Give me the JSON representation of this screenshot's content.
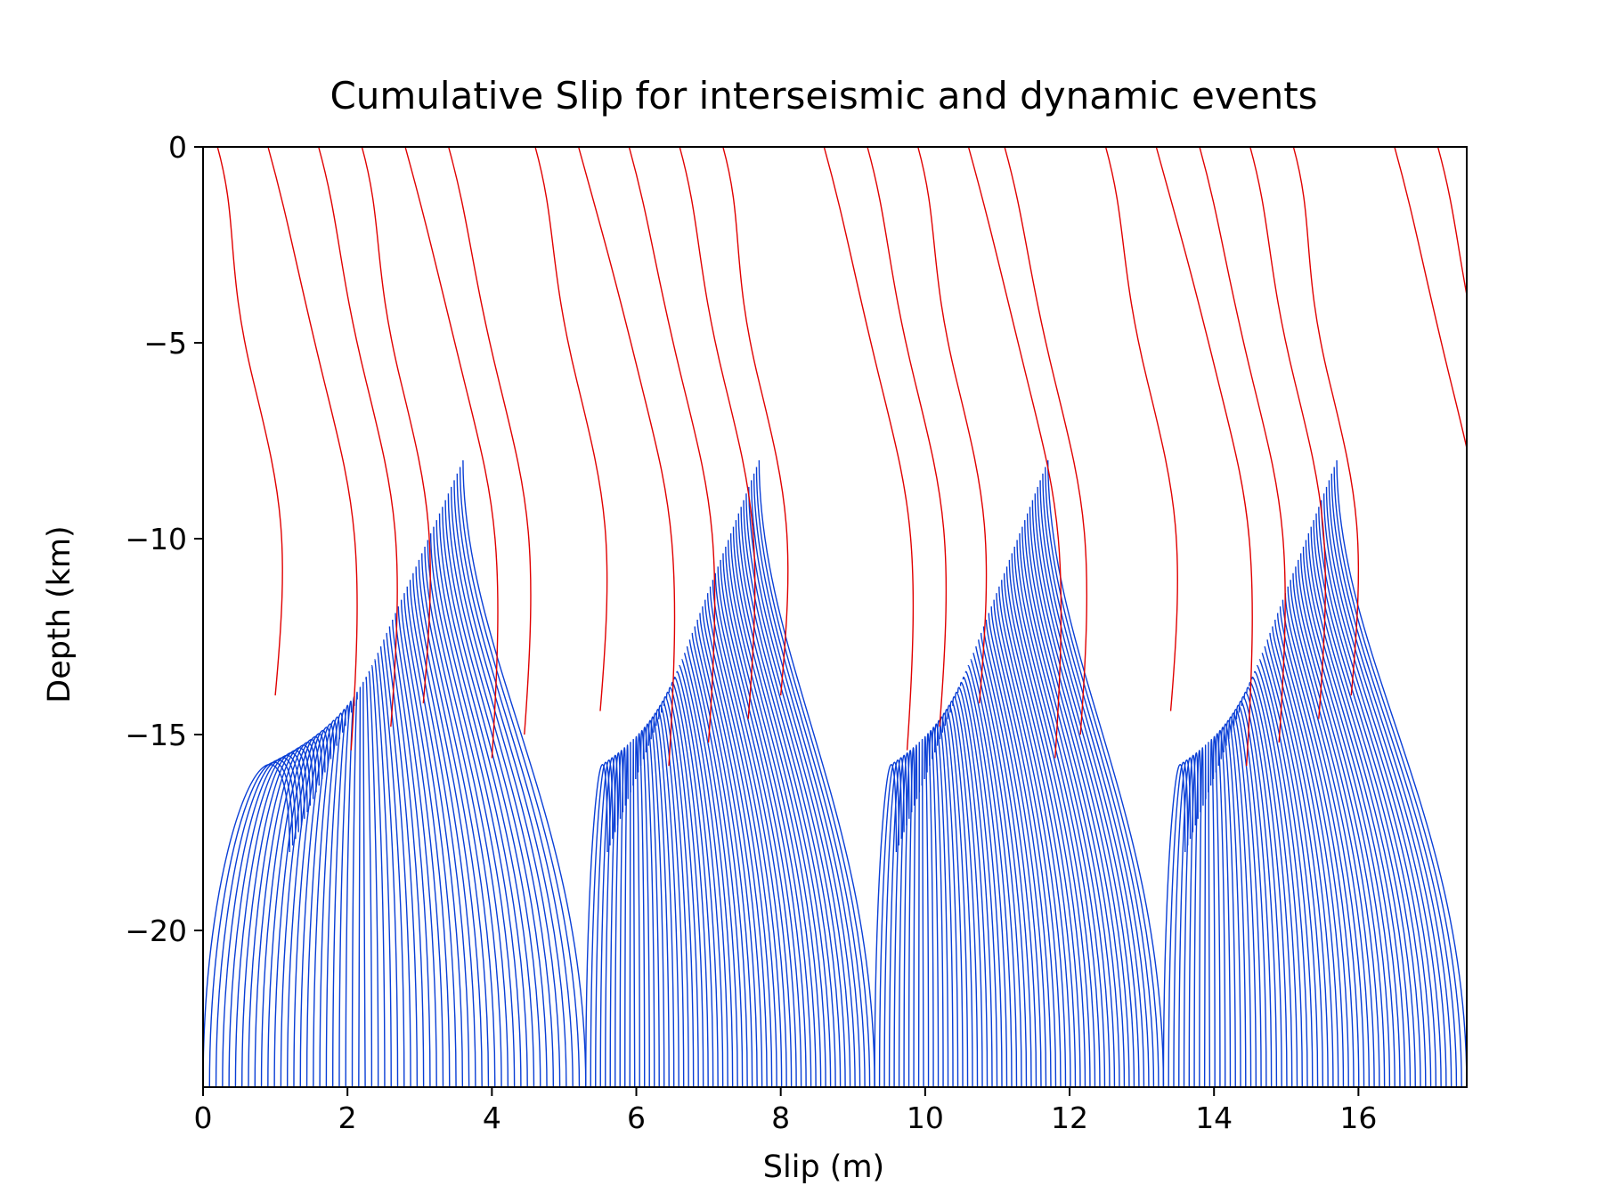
{
  "chart_data": {
    "type": "line",
    "title": "Cumulative Slip for interseismic and dynamic events",
    "xlabel": "Slip (m)",
    "ylabel": "Depth (km)",
    "xlim": [
      0,
      17.5
    ],
    "ylim": [
      -24,
      0
    ],
    "xticks": [
      0,
      2,
      4,
      6,
      8,
      10,
      12,
      14,
      16
    ],
    "yticks": [
      0,
      -5,
      -10,
      -15,
      -20
    ],
    "ytick_labels": [
      "0",
      "−5",
      "−10",
      "−15",
      "−20"
    ],
    "grid": false,
    "legend": "none",
    "colors": {
      "interseismic": "#0a3fd6",
      "dynamic": "#e00000",
      "axes": "#000000"
    },
    "series": [
      {
        "color_key": "interseismic",
        "note_kind": "interseismic",
        "cycles": [
          {
            "slip_at_base": [
              0.0,
              5.3
            ],
            "slip_at_top": [
              1.2,
              3.6
            ],
            "lock_depth": -8.0
          },
          {
            "slip_at_base": [
              5.3,
              9.3
            ],
            "slip_at_top": [
              5.6,
              7.7
            ],
            "lock_depth": -8.0
          },
          {
            "slip_at_base": [
              9.3,
              13.3
            ],
            "slip_at_top": [
              9.6,
              11.7
            ],
            "lock_depth": -8.0
          },
          {
            "slip_at_base": [
              13.3,
              17.5
            ],
            "slip_at_top": [
              13.6,
              15.7
            ],
            "lock_depth": -8.0
          }
        ]
      },
      {
        "color_key": "dynamic",
        "note_kind": "dynamic",
        "events_at_surface": [
          0.2,
          0.9,
          1.6,
          2.2,
          2.8,
          3.4,
          4.6,
          5.2,
          5.9,
          6.6,
          7.2,
          8.6,
          9.2,
          9.9,
          10.6,
          11.1,
          12.5,
          13.2,
          13.8,
          14.5,
          15.1,
          16.5,
          17.1
        ]
      }
    ]
  }
}
